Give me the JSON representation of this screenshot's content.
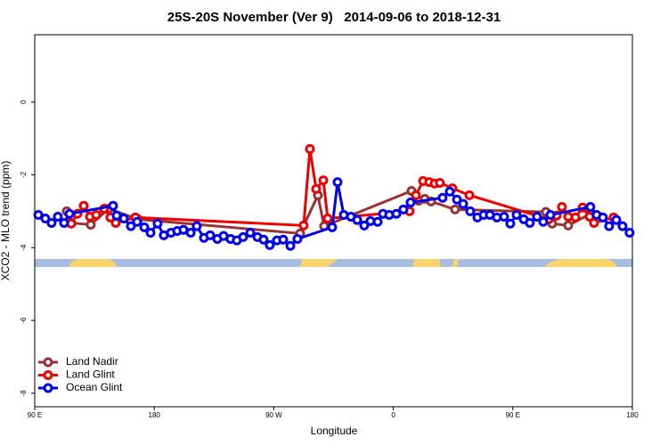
{
  "chart_data": {
    "type": "line",
    "title": "25S-20S November (Ver 9)   2014-09-06 to 2018-12-31",
    "xlabel": "Longitude",
    "ylabel": "XCO2 - MLO trend (ppm)",
    "xlim": [
      90,
      540
    ],
    "ylim": [
      -8.37,
      1.85
    ],
    "xticks": [
      {
        "value": 90,
        "label": "90 E"
      },
      {
        "value": 180,
        "label": "180"
      },
      {
        "value": 270,
        "label": "90 W"
      },
      {
        "value": 360,
        "label": "0"
      },
      {
        "value": 450,
        "label": "90 E"
      },
      {
        "value": 540,
        "label": "180"
      }
    ],
    "yticks": [
      -8,
      -6,
      -4,
      -2,
      0
    ],
    "legend": "bottom-left",
    "series": [
      {
        "name": "Land Nadir",
        "color": "#993333",
        "x": [
          114.1,
          117.5,
          132.2,
          145.7,
          167.8,
          289.8,
          303.2,
          307.9,
          373.7,
          379.0,
          383.7,
          388.4,
          406.5,
          474.9,
          479.6,
          491.7,
          508.4
        ],
        "values": [
          -3.0,
          -3.32,
          -3.37,
          -2.93,
          -3.22,
          -3.61,
          -2.56,
          -3.41,
          -2.44,
          -2.71,
          -2.66,
          -2.73,
          -2.95,
          -3.02,
          -3.34,
          -3.39,
          -3.07
        ]
      },
      {
        "name": "Land Glint",
        "color": "#ee0000",
        "x": [
          117.5,
          122.2,
          126.9,
          131.6,
          136.3,
          142.3,
          147.0,
          151.0,
          165.8,
          292.5,
          297.2,
          301.9,
          307.3,
          310.6,
          372.3,
          377.0,
          382.4,
          387.1,
          391.1,
          395.1,
          404.5,
          417.3,
          477.0,
          483.0,
          487.0,
          491.7,
          497.1,
          502.5,
          507.8,
          511.1,
          525.9
        ],
        "values": [
          -3.34,
          -3.07,
          -2.85,
          -3.15,
          -3.1,
          -2.93,
          -3.17,
          -3.32,
          -3.17,
          -3.39,
          -1.29,
          -2.39,
          -2.15,
          -3.2,
          -3.0,
          -2.56,
          -2.17,
          -2.2,
          -2.24,
          -2.22,
          -2.37,
          -2.56,
          -3.22,
          -3.12,
          -2.88,
          -3.15,
          -3.17,
          -2.9,
          -3.15,
          -3.32,
          -3.17
        ]
      },
      {
        "name": "Ocean Glint",
        "color": "#0000ee",
        "x": [
          92.7,
          98.0,
          102.7,
          107.4,
          112.1,
          116.2,
          149.0,
          151.7,
          157.1,
          162.4,
          167.1,
          172.5,
          177.2,
          182.5,
          187.2,
          192.6,
          197.3,
          202.0,
          207.4,
          212.0,
          217.4,
          222.1,
          227.5,
          232.2,
          237.5,
          242.2,
          246.9,
          252.3,
          257.7,
          262.3,
          267.0,
          272.4,
          277.1,
          282.5,
          287.8,
          314.0,
          318.0,
          322.7,
          328.1,
          332.8,
          338.1,
          342.8,
          348.2,
          352.2,
          356.9,
          362.3,
          367.6,
          373.0,
          397.1,
          402.5,
          407.9,
          412.6,
          417.9,
          423.3,
          428.0,
          432.7,
          438.0,
          443.4,
          448.1,
          452.8,
          458.2,
          462.8,
          468.2,
          472.9,
          478.3,
          508.4,
          513.1,
          517.8,
          522.5,
          527.9,
          532.6,
          537.9
        ],
        "values": [
          -3.1,
          -3.2,
          -3.32,
          -3.15,
          -3.32,
          -3.07,
          -2.85,
          -3.12,
          -3.2,
          -3.41,
          -3.29,
          -3.44,
          -3.59,
          -3.34,
          -3.66,
          -3.59,
          -3.54,
          -3.51,
          -3.59,
          -3.41,
          -3.73,
          -3.66,
          -3.76,
          -3.68,
          -3.76,
          -3.8,
          -3.71,
          -3.59,
          -3.71,
          -3.78,
          -3.93,
          -3.8,
          -3.78,
          -3.95,
          -3.76,
          -3.44,
          -2.2,
          -3.1,
          -3.15,
          -3.24,
          -3.39,
          -3.27,
          -3.29,
          -3.07,
          -3.1,
          -3.07,
          -2.95,
          -2.76,
          -2.63,
          -2.46,
          -2.68,
          -2.8,
          -3.0,
          -3.17,
          -3.1,
          -3.1,
          -3.17,
          -3.15,
          -3.34,
          -3.1,
          -3.22,
          -3.32,
          -3.15,
          -3.29,
          -3.1,
          -2.88,
          -3.1,
          -3.17,
          -3.41,
          -3.24,
          -3.41,
          -3.59
        ]
      }
    ]
  }
}
